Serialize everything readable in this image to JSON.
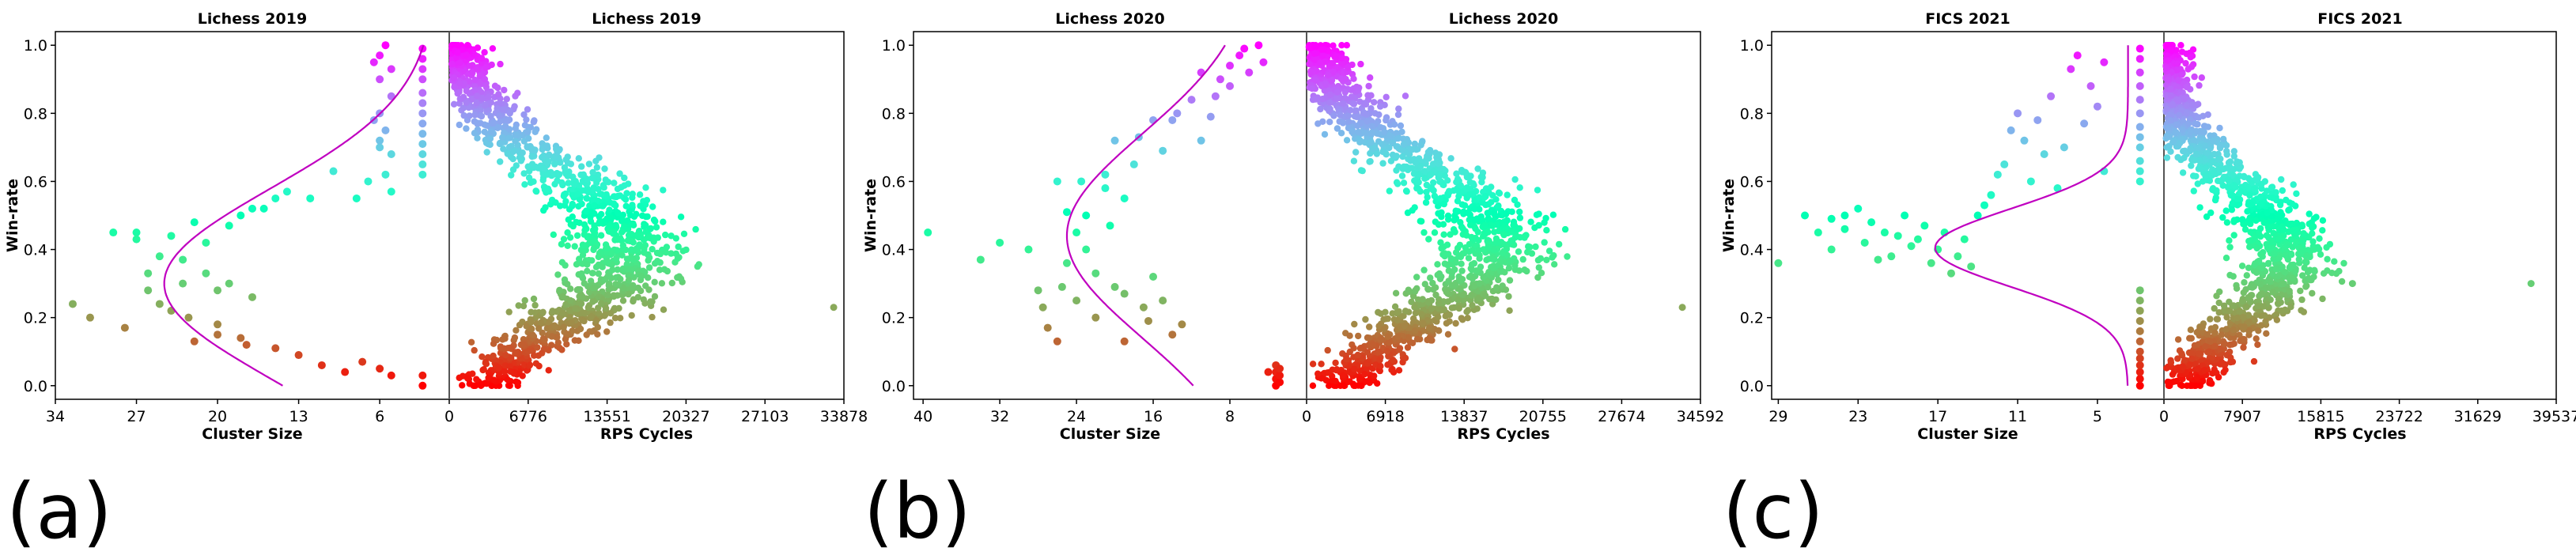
{
  "colors": {
    "fit_line": "#c000c0",
    "divider": "#555555",
    "axes": "#000000",
    "point_colormap": "rainbow"
  },
  "panel_labels": [
    "(a)",
    "(b)",
    "(c)"
  ],
  "chart_data": [
    {
      "type": "scatter",
      "panel": "(a)",
      "left": {
        "title": "Lichess 2019",
        "xlabel": "Cluster Size",
        "ylabel": "Win-rate",
        "xaxis_reversed": true,
        "xlim": [
          34,
          0
        ],
        "ylim": [
          -0.04,
          1.04
        ],
        "xticks": [
          "34",
          "27",
          "20",
          "13",
          "6"
        ],
        "xtick_values": [
          34,
          27,
          20,
          13,
          6
        ],
        "yticks": [
          "0.0",
          "0.2",
          "0.4",
          "0.6",
          "0.8",
          "1.0"
        ],
        "points": [
          [
            32.5,
            0.24
          ],
          [
            31,
            0.2
          ],
          [
            29,
            0.45
          ],
          [
            27,
            0.45
          ],
          [
            28,
            0.17
          ],
          [
            27,
            0.43
          ],
          [
            26,
            0.33
          ],
          [
            25,
            0.38
          ],
          [
            26,
            0.28
          ],
          [
            25,
            0.24
          ],
          [
            24,
            0.22
          ],
          [
            24,
            0.44
          ],
          [
            23,
            0.37
          ],
          [
            23,
            0.3
          ],
          [
            22.5,
            0.2
          ],
          [
            22,
            0.13
          ],
          [
            22,
            0.48
          ],
          [
            21,
            0.33
          ],
          [
            21,
            0.42
          ],
          [
            20,
            0.28
          ],
          [
            20,
            0.18
          ],
          [
            20,
            0.15
          ],
          [
            19,
            0.47
          ],
          [
            19,
            0.3
          ],
          [
            18,
            0.14
          ],
          [
            18,
            0.5
          ],
          [
            17.5,
            0.12
          ],
          [
            17,
            0.52
          ],
          [
            17,
            0.26
          ],
          [
            16,
            0.52
          ],
          [
            15,
            0.11
          ],
          [
            15,
            0.55
          ],
          [
            14,
            0.57
          ],
          [
            13,
            0.09
          ],
          [
            12,
            0.55
          ],
          [
            11,
            0.06
          ],
          [
            10,
            0.63
          ],
          [
            9,
            0.04
          ],
          [
            8,
            0.55
          ],
          [
            7.5,
            0.07
          ],
          [
            7,
            0.6
          ],
          [
            6,
            0.05
          ],
          [
            6,
            0.97
          ],
          [
            6,
            0.9
          ],
          [
            6,
            0.8
          ],
          [
            6,
            0.7
          ],
          [
            5.5,
            0.62
          ],
          [
            5.5,
            0.75
          ],
          [
            5,
            0.03
          ],
          [
            5,
            0.85
          ],
          [
            5,
            0.93
          ],
          [
            5,
            0.68
          ],
          [
            5,
            0.57
          ],
          [
            5.5,
            1.0
          ],
          [
            6.5,
            0.95
          ],
          [
            6.5,
            0.78
          ],
          [
            6,
            0.72
          ],
          [
            2.3,
            0.0
          ],
          [
            2.3,
            0.03
          ],
          [
            2.3,
            0.96
          ],
          [
            2.3,
            0.93
          ],
          [
            2.3,
            0.9
          ],
          [
            2.3,
            0.86
          ],
          [
            2.3,
            0.83
          ],
          [
            2.3,
            0.8
          ],
          [
            2.3,
            0.77
          ],
          [
            2.3,
            0.74
          ],
          [
            2.3,
            0.71
          ],
          [
            2.3,
            0.68
          ],
          [
            2.3,
            0.65
          ],
          [
            2.3,
            0.62
          ],
          [
            2.3,
            0.99
          ]
        ],
        "fit": {
          "mu": 0.3,
          "sigma": 0.28,
          "amp": 23.4,
          "floor": 1.2,
          "ymin": 0.0,
          "ymax": 1.0
        }
      },
      "right": {
        "title": "Lichess 2019",
        "xlabel": "RPS Cycles",
        "xlim": [
          0,
          33878
        ],
        "xticks": [
          "0",
          "6776",
          "13551",
          "20327",
          "27103",
          "33878"
        ],
        "xtick_values": [
          0,
          6776,
          13551,
          20327,
          27103,
          33878
        ],
        "shape": {
          "peak": 15500,
          "mu": 0.4,
          "sigma": 0.23
        },
        "outliers": [
          [
            33000,
            0.23
          ]
        ]
      }
    },
    {
      "type": "scatter",
      "panel": "(b)",
      "left": {
        "title": "Lichess 2020",
        "xlabel": "Cluster Size",
        "ylabel": "Win-rate",
        "xaxis_reversed": true,
        "xlim": [
          41,
          0
        ],
        "ylim": [
          -0.04,
          1.04
        ],
        "xticks": [
          "40",
          "32",
          "24",
          "16",
          "8"
        ],
        "xtick_values": [
          40,
          32,
          24,
          16,
          8
        ],
        "yticks": [
          "0.0",
          "0.2",
          "0.4",
          "0.6",
          "0.8",
          "1.0"
        ],
        "points": [
          [
            39.5,
            0.45
          ],
          [
            34,
            0.37
          ],
          [
            32,
            0.42
          ],
          [
            29,
            0.4
          ],
          [
            28,
            0.28
          ],
          [
            27.5,
            0.23
          ],
          [
            27,
            0.17
          ],
          [
            26,
            0.6
          ],
          [
            26,
            0.13
          ],
          [
            25.5,
            0.29
          ],
          [
            25,
            0.51
          ],
          [
            25,
            0.36
          ],
          [
            24,
            0.45
          ],
          [
            24,
            0.25
          ],
          [
            23.5,
            0.6
          ],
          [
            23,
            0.5
          ],
          [
            23,
            0.4
          ],
          [
            22,
            0.33
          ],
          [
            22,
            0.2
          ],
          [
            21,
            0.62
          ],
          [
            21,
            0.58
          ],
          [
            20.5,
            0.47
          ],
          [
            20,
            0.72
          ],
          [
            20,
            0.29
          ],
          [
            19,
            0.27
          ],
          [
            19,
            0.55
          ],
          [
            19,
            0.13
          ],
          [
            18,
            0.65
          ],
          [
            17.5,
            0.73
          ],
          [
            17,
            0.23
          ],
          [
            16.5,
            0.19
          ],
          [
            16,
            0.78
          ],
          [
            16,
            0.32
          ],
          [
            15,
            0.25
          ],
          [
            15,
            0.69
          ],
          [
            14,
            0.78
          ],
          [
            14,
            0.15
          ],
          [
            13.5,
            0.8
          ],
          [
            13,
            0.18
          ],
          [
            12,
            0.84
          ],
          [
            11,
            0.92
          ],
          [
            11,
            0.72
          ],
          [
            10,
            0.79
          ],
          [
            9.5,
            0.85
          ],
          [
            9,
            0.9
          ],
          [
            8,
            0.88
          ],
          [
            8,
            0.94
          ],
          [
            7,
            0.97
          ],
          [
            6.5,
            0.99
          ],
          [
            6,
            0.92
          ],
          [
            5,
            1.0
          ],
          [
            4,
            0.04
          ],
          [
            4.5,
            0.95
          ],
          [
            3.2,
            0.0
          ],
          [
            3.2,
            0.02
          ],
          [
            3.2,
            0.04
          ],
          [
            3.2,
            0.06
          ],
          [
            2.8,
            0.01
          ],
          [
            2.8,
            0.03
          ],
          [
            2.8,
            0.05
          ]
        ],
        "fit": {
          "mu": 0.44,
          "sigma": 0.3,
          "amp": 20,
          "floor": 5.0,
          "ymin": 0.0,
          "ymax": 1.0
        }
      },
      "right": {
        "title": "Lichess 2020",
        "xlabel": "RPS Cycles",
        "xlim": [
          0,
          34592
        ],
        "xticks": [
          "0",
          "6918",
          "13837",
          "20755",
          "27674",
          "34592"
        ],
        "xtick_values": [
          0,
          6918,
          13837,
          20755,
          27674,
          34592
        ],
        "shape": {
          "peak": 16500,
          "mu": 0.42,
          "sigma": 0.23
        },
        "outliers": [
          [
            33000,
            0.23
          ]
        ]
      }
    },
    {
      "type": "scatter",
      "panel": "(c)",
      "left": {
        "title": "FICS 2021",
        "xlabel": "Cluster Size",
        "ylabel": "Win-rate",
        "xaxis_reversed": true,
        "xlim": [
          29.5,
          0
        ],
        "ylim": [
          -0.04,
          1.04
        ],
        "xticks": [
          "29",
          "23",
          "17",
          "11",
          "5"
        ],
        "xtick_values": [
          29,
          23,
          17,
          11,
          5
        ],
        "yticks": [
          "0.0",
          "0.2",
          "0.4",
          "0.6",
          "0.8",
          "1.0"
        ],
        "points": [
          [
            29,
            0.36
          ],
          [
            27,
            0.5
          ],
          [
            26,
            0.45
          ],
          [
            25,
            0.49
          ],
          [
            25,
            0.4
          ],
          [
            24,
            0.5
          ],
          [
            24,
            0.46
          ],
          [
            23,
            0.52
          ],
          [
            22.5,
            0.42
          ],
          [
            22,
            0.48
          ],
          [
            21.5,
            0.37
          ],
          [
            21,
            0.45
          ],
          [
            20.5,
            0.38
          ],
          [
            20,
            0.44
          ],
          [
            19.5,
            0.5
          ],
          [
            19,
            0.41
          ],
          [
            18.5,
            0.43
          ],
          [
            18,
            0.47
          ],
          [
            17.5,
            0.36
          ],
          [
            17,
            0.4
          ],
          [
            16.5,
            0.45
          ],
          [
            16,
            0.33
          ],
          [
            15.5,
            0.38
          ],
          [
            15,
            0.43
          ],
          [
            14.5,
            0.35
          ],
          [
            14,
            0.5
          ],
          [
            13.5,
            0.53
          ],
          [
            13,
            0.56
          ],
          [
            12.5,
            0.62
          ],
          [
            12,
            0.65
          ],
          [
            11.5,
            0.75
          ],
          [
            11,
            0.8
          ],
          [
            10.5,
            0.72
          ],
          [
            10,
            0.6
          ],
          [
            9.5,
            0.78
          ],
          [
            9,
            0.68
          ],
          [
            8.5,
            0.85
          ],
          [
            8,
            0.58
          ],
          [
            7.5,
            0.7
          ],
          [
            7,
            0.93
          ],
          [
            6.5,
            0.97
          ],
          [
            6,
            0.77
          ],
          [
            5.5,
            0.88
          ],
          [
            5,
            0.82
          ],
          [
            4.5,
            0.95
          ],
          [
            4.5,
            0.63
          ],
          [
            1.8,
            0.0
          ],
          [
            1.8,
            0.02
          ],
          [
            1.8,
            0.04
          ],
          [
            1.8,
            0.06
          ],
          [
            1.8,
            0.08
          ],
          [
            1.8,
            0.1
          ],
          [
            1.8,
            0.13
          ],
          [
            1.8,
            0.16
          ],
          [
            1.8,
            0.19
          ],
          [
            1.8,
            0.22
          ],
          [
            1.8,
            0.25
          ],
          [
            1.8,
            0.28
          ],
          [
            1.8,
            0.6
          ],
          [
            1.8,
            0.63
          ],
          [
            1.8,
            0.66
          ],
          [
            1.8,
            0.7
          ],
          [
            1.8,
            0.73
          ],
          [
            1.8,
            0.76
          ],
          [
            1.8,
            0.8
          ],
          [
            1.8,
            0.84
          ],
          [
            1.8,
            0.88
          ],
          [
            1.8,
            0.92
          ],
          [
            1.8,
            0.96
          ],
          [
            1.8,
            0.99
          ]
        ],
        "fit": {
          "mu": 0.405,
          "sigma": 0.115,
          "amp": 14.5,
          "floor": 2.7,
          "ymin": 0.0,
          "ymax": 1.0
        }
      },
      "right": {
        "title": "FICS 2021",
        "xlabel": "RPS Cycles",
        "xlim": [
          0,
          39537
        ],
        "xticks": [
          "0",
          "7907",
          "15815",
          "23722",
          "31629",
          "39537"
        ],
        "xtick_values": [
          0,
          7907,
          15815,
          23722,
          31629,
          39537
        ],
        "shape": {
          "peak": 12500,
          "mu": 0.38,
          "sigma": 0.2
        },
        "outliers": [
          [
            19000,
            0.3
          ],
          [
            37000,
            0.3
          ]
        ]
      }
    }
  ]
}
